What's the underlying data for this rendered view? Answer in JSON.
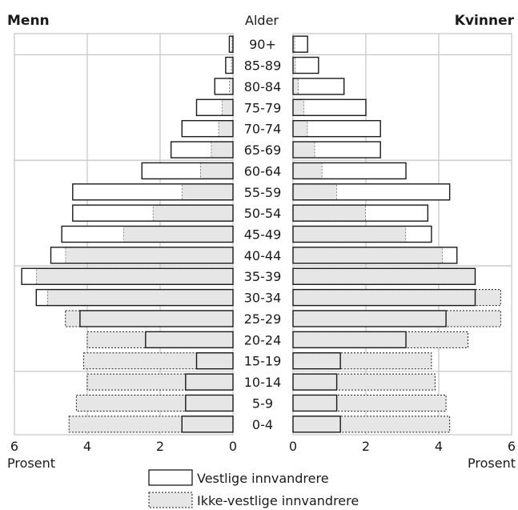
{
  "chart_data": {
    "type": "bar",
    "subtype": "population-pyramid",
    "left_title": "Menn",
    "right_title": "Kvinner",
    "center_label": "Alder",
    "unit_label": "Prosent",
    "xlim": [
      0,
      6
    ],
    "x_ticks": [
      6,
      4,
      2,
      0
    ],
    "grid": true,
    "legend_position": "bottom-center",
    "categories": [
      "0-4",
      "5-9",
      "10-14",
      "15-19",
      "20-24",
      "25-29",
      "30-34",
      "35-39",
      "40-44",
      "45-49",
      "50-54",
      "55-59",
      "60-64",
      "65-69",
      "70-74",
      "75-79",
      "80-84",
      "85-89",
      "90+"
    ],
    "series": [
      {
        "name": "Vestlige innvandrere",
        "style": "solid outline",
        "men": [
          1.4,
          1.3,
          1.3,
          1.0,
          2.4,
          4.2,
          5.4,
          5.8,
          5.0,
          4.7,
          4.4,
          4.4,
          2.5,
          1.7,
          1.4,
          1.0,
          0.5,
          0.2,
          0.1
        ],
        "women": [
          1.3,
          1.2,
          1.2,
          1.3,
          3.1,
          4.2,
          5.0,
          5.0,
          4.5,
          3.8,
          3.7,
          4.3,
          3.1,
          2.4,
          2.4,
          2.0,
          1.4,
          0.7,
          0.4
        ]
      },
      {
        "name": "Ikke-vestlige innvandrere",
        "style": "grey fill dashed outline",
        "men": [
          4.5,
          4.3,
          4.0,
          4.1,
          4.0,
          4.6,
          5.1,
          5.4,
          4.6,
          3.0,
          2.2,
          1.4,
          0.9,
          0.6,
          0.4,
          0.3,
          0.1,
          0.05,
          0.03
        ],
        "women": [
          4.3,
          4.2,
          3.9,
          3.8,
          4.8,
          5.7,
          5.7,
          5.0,
          4.1,
          3.1,
          2.0,
          1.2,
          0.8,
          0.6,
          0.4,
          0.3,
          0.15,
          0.07,
          0.05
        ]
      }
    ],
    "colors": {
      "fill_ikke_vestlige": "#e6e6e6",
      "fill_vestlige": "#ffffff",
      "outline": "#1a1a1a",
      "grid": "#c8c8c8"
    }
  }
}
